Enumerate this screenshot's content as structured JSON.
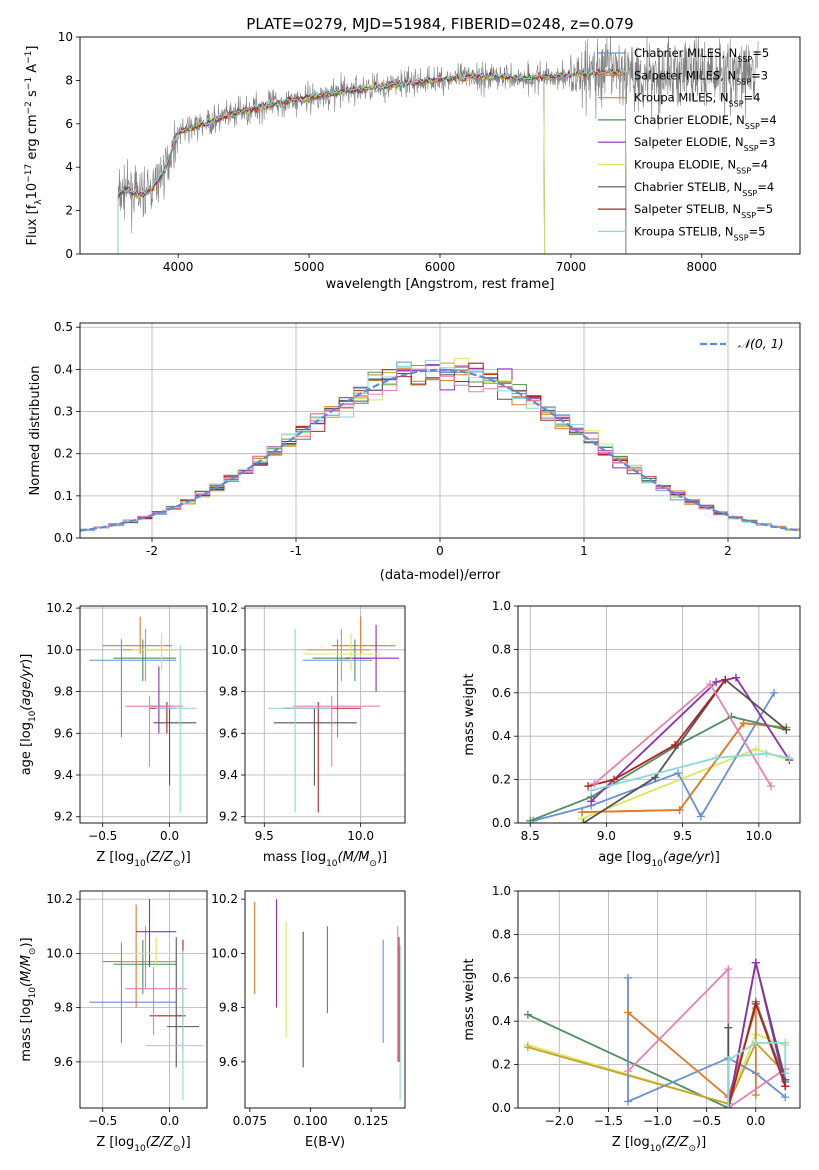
{
  "figure_title": "PLATE=0279, MJD=51984, FIBERID=0248, z=0.079",
  "colors": [
    "#6a8fd8",
    "#e07a2a",
    "#c8a030",
    "#4f8f5f",
    "#8e2fb0",
    "#d8e860",
    "#555555",
    "#b22222",
    "#8ad8d8"
  ],
  "chart_data": [
    {
      "name": "spectrum",
      "type": "line",
      "title": "PLATE=0279, MJD=51984, FIBERID=0248, z=0.079",
      "xlabel": "wavelength [Angstrom, rest frame]",
      "ylabel": "Flux [f_λ 10^-17 erg cm^-2 s^-1 A^-1]",
      "xlim": [
        3250,
        8750
      ],
      "ylim": [
        0,
        10
      ],
      "xticks": [
        4000,
        5000,
        6000,
        7000,
        8000
      ],
      "yticks": [
        0,
        2,
        4,
        6,
        8,
        10
      ],
      "grid": false,
      "legend_position": "right",
      "data_color": "#808080",
      "data_start": 3540,
      "data_end": 8430,
      "model_start": 3540,
      "model_end": 7420,
      "model_continuum": {
        "x": [
          3540,
          3600,
          3700,
          3800,
          3900,
          4000,
          4100,
          4300,
          4500,
          4800,
          5000,
          5200,
          5500,
          5800,
          6100,
          6400,
          6600,
          6900,
          7100,
          7300,
          7420
        ],
        "y": [
          2.6,
          3.0,
          2.7,
          3.0,
          3.9,
          5.6,
          5.8,
          6.2,
          6.6,
          7.0,
          7.2,
          7.4,
          7.7,
          7.9,
          8.1,
          8.2,
          8.1,
          8.2,
          8.3,
          8.4,
          8.3
        ]
      },
      "series": [
        {
          "name_base": "Chabrier MILES, N",
          "name_sub": "SSP",
          "name_rest": "=5",
          "color": "#6a8fd8",
          "end": 7420
        },
        {
          "name_base": "Salpeter MILES, N",
          "name_sub": "SSP",
          "name_rest": "=3",
          "color": "#e07a2a",
          "end": 7420
        },
        {
          "name_base": "Kroupa MILES, N",
          "name_sub": "SSP",
          "name_rest": "=4",
          "color": "#c8a030",
          "end": 7420
        },
        {
          "name_base": "Chabrier ELODIE, N",
          "name_sub": "SSP",
          "name_rest": "=4",
          "color": "#4f8f5f",
          "end": 6800
        },
        {
          "name_base": "Salpeter ELODIE, N",
          "name_sub": "SSP",
          "name_rest": "=3",
          "color": "#8e2fb0",
          "end": 6800
        },
        {
          "name_base": "Kroupa ELODIE, N",
          "name_sub": "SSP",
          "name_rest": "=4",
          "color": "#d8e860",
          "end": 6800
        },
        {
          "name_base": "Chabrier STELIB, N",
          "name_sub": "SSP",
          "name_rest": "=4",
          "color": "#555555",
          "end": 7420
        },
        {
          "name_base": "Salpeter STELIB, N",
          "name_sub": "SSP",
          "name_rest": "=5",
          "color": "#b22222",
          "end": 7420
        },
        {
          "name_base": "Kroupa STELIB, N",
          "name_sub": "SSP",
          "name_rest": "=5",
          "color": "#8ad8d8",
          "end": 7420
        }
      ]
    },
    {
      "name": "residuals",
      "type": "histogram",
      "xlabel": "(data-model)/error",
      "ylabel": "Normed distribution",
      "xlim": [
        -2.5,
        2.5
      ],
      "ylim": [
        0,
        0.51
      ],
      "xticks": [
        -2,
        -1,
        0,
        1,
        2
      ],
      "yticks": [
        0.0,
        0.1,
        0.2,
        0.3,
        0.4,
        0.5
      ],
      "grid": true,
      "bin_width": 0.1,
      "gaussian": {
        "label": "𝒩(0, 1)",
        "color": "#5a8cd8",
        "mu": 0,
        "sigma": 1
      },
      "legend_position": "top-right"
    },
    {
      "name": "age_vs_Z",
      "type": "errorbar",
      "xlabel": "Z [log10(Z/Z☉)]",
      "ylabel": "age [log10(age/yr)]",
      "xlim": [
        -0.67,
        0.28
      ],
      "ylim": [
        9.17,
        10.21
      ],
      "xticks": [
        -0.5,
        0.0
      ],
      "xticklabels": [
        "−0.5",
        "0.0"
      ],
      "yticks": [
        9.2,
        9.4,
        9.6,
        9.8,
        10.0,
        10.2
      ],
      "grid": true,
      "points": [
        {
          "color": "#6a8fd8",
          "x": -0.36,
          "y": 9.95,
          "xl": -0.6,
          "xh": 0.05,
          "yl": 9.58,
          "yh": 10.05
        },
        {
          "color": "#e07a2a",
          "x": -0.22,
          "y": 10.02,
          "xl": -0.5,
          "xh": 0.02,
          "yl": 9.98,
          "yh": 10.16
        },
        {
          "color": "#c8a030",
          "x": -0.18,
          "y": 10.0,
          "xl": -0.35,
          "xh": 0.05,
          "yl": 9.85,
          "yh": 10.1
        },
        {
          "color": "#4f8f5f",
          "x": -0.2,
          "y": 9.96,
          "xl": -0.42,
          "xh": 0.05,
          "yl": 9.85,
          "yh": 10.05
        },
        {
          "color": "#8e2fb0",
          "x": -0.08,
          "y": 9.73,
          "xl": -0.15,
          "xh": 0.02,
          "yl": 9.6,
          "yh": 9.92
        },
        {
          "color": "#d8e860",
          "x": -0.06,
          "y": 10.0,
          "xl": -0.28,
          "xh": 0.05,
          "yl": 9.9,
          "yh": 10.08
        },
        {
          "color": "#555555",
          "x": 0.0,
          "y": 9.65,
          "xl": -0.12,
          "xh": 0.2,
          "yl": 9.35,
          "yh": 9.72
        },
        {
          "color": "#b22222",
          "x": -0.02,
          "y": 9.72,
          "xl": -0.15,
          "xh": 0.05,
          "yl": 9.6,
          "yh": 9.75
        },
        {
          "color": "#e87fb0",
          "x": -0.15,
          "y": 9.73,
          "xl": -0.33,
          "xh": 0.1,
          "yl": 9.44,
          "yh": 9.78
        },
        {
          "color": "#8ad8d8",
          "x": 0.08,
          "y": 9.72,
          "xl": -0.1,
          "xh": 0.2,
          "yl": 9.22,
          "yh": 10.02
        }
      ]
    },
    {
      "name": "age_vs_mass",
      "type": "errorbar",
      "xlabel": "mass [log10(M/M☉)]",
      "ylabel": "",
      "xlim": [
        9.4,
        10.23
      ],
      "ylim": [
        9.17,
        10.21
      ],
      "xticks": [
        9.5,
        10.0
      ],
      "xticklabels": [
        "9.5",
        "10.0"
      ],
      "yticks": [
        9.2,
        9.4,
        9.6,
        9.8,
        10.0,
        10.2
      ],
      "grid": true,
      "points": [
        {
          "color": "#6a8fd8",
          "x": 9.88,
          "y": 9.95,
          "xl": 9.7,
          "xh": 10.06,
          "yl": 9.58,
          "yh": 10.05
        },
        {
          "color": "#e07a2a",
          "x": 10.0,
          "y": 10.02,
          "xl": 9.85,
          "xh": 10.18,
          "yl": 9.98,
          "yh": 10.16
        },
        {
          "color": "#c8a030",
          "x": 9.9,
          "y": 10.0,
          "xl": 9.72,
          "xh": 10.05,
          "yl": 9.85,
          "yh": 10.1
        },
        {
          "color": "#4f8f5f",
          "x": 9.97,
          "y": 9.96,
          "xl": 9.75,
          "xh": 10.05,
          "yl": 9.85,
          "yh": 10.05
        },
        {
          "color": "#8e2fb0",
          "x": 10.08,
          "y": 9.96,
          "xl": 9.92,
          "xh": 10.2,
          "yl": 9.8,
          "yh": 10.12
        },
        {
          "color": "#d8e860",
          "x": 9.95,
          "y": 9.98,
          "xl": 9.7,
          "xh": 10.1,
          "yl": 9.9,
          "yh": 10.08
        },
        {
          "color": "#555555",
          "x": 9.76,
          "y": 9.65,
          "xl": 9.55,
          "xh": 9.98,
          "yl": 9.35,
          "yh": 9.72
        },
        {
          "color": "#b22222",
          "x": 9.78,
          "y": 9.72,
          "xl": 9.6,
          "xh": 10.0,
          "yl": 9.22,
          "yh": 9.75
        },
        {
          "color": "#e87fb0",
          "x": 9.85,
          "y": 9.73,
          "xl": 9.65,
          "xh": 10.1,
          "yl": 9.44,
          "yh": 9.78
        },
        {
          "color": "#8ad8d8",
          "x": 9.66,
          "y": 9.72,
          "xl": 9.52,
          "xh": 9.85,
          "yl": 9.22,
          "yh": 10.1
        }
      ]
    },
    {
      "name": "weight_vs_age",
      "type": "line",
      "xlabel": "age [log10(age/yr)]",
      "ylabel": "mass weight",
      "xlim": [
        8.42,
        10.27
      ],
      "ylim": [
        0,
        1.0
      ],
      "xticks": [
        8.5,
        9.0,
        9.5,
        10.0
      ],
      "xticklabels": [
        "8.5",
        "9.0",
        "9.5",
        "10.0"
      ],
      "yticks": [
        0.0,
        0.2,
        0.4,
        0.6,
        0.8,
        1.0
      ],
      "grid": true,
      "series": [
        {
          "color": "#d8e860",
          "x": [
            8.84,
            9.98,
            10.2
          ],
          "y": [
            0.02,
            0.34,
            0.29
          ]
        },
        {
          "color": "#c8a030",
          "x": [
            8.84,
            9.48,
            9.9,
            10.18
          ],
          "y": [
            0.05,
            0.06,
            0.46,
            0.44
          ]
        },
        {
          "color": "#e07a2a",
          "x": [
            8.84,
            9.48,
            9.9,
            10.18
          ],
          "y": [
            0.05,
            0.06,
            0.46,
            0.44
          ]
        },
        {
          "color": "#6a8fd8",
          "x": [
            8.52,
            8.9,
            9.47,
            9.62,
            10.1
          ],
          "y": [
            0.01,
            0.08,
            0.23,
            0.03,
            0.6
          ]
        },
        {
          "color": "#4f8f5f",
          "x": [
            8.5,
            8.9,
            9.47,
            9.82,
            10.18
          ],
          "y": [
            0.01,
            0.12,
            0.36,
            0.49,
            0.43
          ]
        },
        {
          "color": "#8e2fb0",
          "x": [
            8.9,
            9.72,
            9.85,
            10.2
          ],
          "y": [
            0.1,
            0.65,
            0.67,
            0.29
          ]
        },
        {
          "color": "#555555",
          "x": [
            8.85,
            9.32,
            9.78,
            10.18
          ],
          "y": [
            0.0,
            0.21,
            0.66,
            0.43
          ]
        },
        {
          "color": "#b22222",
          "x": [
            8.88,
            9.05,
            9.45,
            9.78
          ],
          "y": [
            0.17,
            0.2,
            0.36,
            0.66
          ]
        },
        {
          "color": "#e87fb0",
          "x": [
            8.92,
            9.68,
            10.08
          ],
          "y": [
            0.18,
            0.64,
            0.17
          ]
        },
        {
          "color": "#8ad8d8",
          "x": [
            8.9,
            9.72,
            10.05,
            10.2
          ],
          "y": [
            0.15,
            0.3,
            0.32,
            0.3
          ]
        }
      ]
    },
    {
      "name": "mass_vs_Z",
      "type": "errorbar",
      "xlabel": "Z [log10(Z/Z☉)]",
      "ylabel": "mass [log10(M/M☉)]",
      "xlim": [
        -0.67,
        0.28
      ],
      "ylim": [
        9.43,
        10.23
      ],
      "xticks": [
        -0.5,
        0.0
      ],
      "xticklabels": [
        "−0.5",
        "0.0"
      ],
      "yticks": [
        9.6,
        9.8,
        10.0,
        10.2
      ],
      "grid": true,
      "points": [
        {
          "color": "#6a8fd8",
          "x": -0.36,
          "y": 9.82,
          "xl": -0.6,
          "xh": 0.05,
          "yl": 9.67,
          "yh": 10.04
        },
        {
          "color": "#e07a2a",
          "x": -0.25,
          "y": 9.97,
          "xl": -0.5,
          "xh": 0.02,
          "yl": 9.8,
          "yh": 10.18
        },
        {
          "color": "#c8a030",
          "x": -0.18,
          "y": 9.97,
          "xl": -0.35,
          "xh": 0.05,
          "yl": 9.87,
          "yh": 10.1
        },
        {
          "color": "#4f8f5f",
          "x": -0.2,
          "y": 9.96,
          "xl": -0.42,
          "xh": 0.05,
          "yl": 9.85,
          "yh": 10.05
        },
        {
          "color": "#8e2fb0",
          "x": -0.15,
          "y": 10.08,
          "xl": -0.25,
          "xh": 0.05,
          "yl": 9.95,
          "yh": 10.2
        },
        {
          "color": "#d8e860",
          "x": -0.1,
          "y": 10.0,
          "xl": -0.35,
          "xh": 0.05,
          "yl": 9.95,
          "yh": 10.06
        },
        {
          "color": "#555555",
          "x": 0.05,
          "y": 9.73,
          "xl": -0.02,
          "xh": 0.22,
          "yl": 9.58,
          "yh": 10.06
        },
        {
          "color": "#b22222",
          "x": 0.1,
          "y": 9.77,
          "xl": -0.15,
          "xh": 0.12,
          "yl": 9.64,
          "yh": 10.05
        },
        {
          "color": "#e87fb0",
          "x": -0.12,
          "y": 9.87,
          "xl": -0.33,
          "xh": 0.13,
          "yl": 9.7,
          "yh": 9.95
        },
        {
          "color": "#8ad8d8",
          "x": 0.1,
          "y": 9.66,
          "xl": -0.18,
          "xh": 0.25,
          "yl": 9.46,
          "yh": 10.01
        }
      ]
    },
    {
      "name": "mass_vs_EBV",
      "type": "errorbar",
      "xlabel": "E(B-V)",
      "ylabel": "",
      "xlim": [
        0.073,
        0.139
      ],
      "ylim": [
        9.43,
        10.23
      ],
      "xticks": [
        0.075,
        0.1,
        0.125
      ],
      "xticklabels": [
        "0.075",
        "0.100",
        "0.125"
      ],
      "yticks": [
        9.6,
        9.8,
        10.0,
        10.2
      ],
      "grid": false,
      "points": [
        {
          "color": "#e07a2a",
          "x": 0.077,
          "y": 10.02,
          "yl": 9.85,
          "yh": 10.19
        },
        {
          "color": "#8e2fb0",
          "x": 0.086,
          "y": 10.0,
          "yl": 9.8,
          "yh": 10.2
        },
        {
          "color": "#d8e860",
          "x": 0.09,
          "y": 9.9,
          "yl": 9.69,
          "yh": 10.12
        },
        {
          "color": "#555555",
          "x": 0.097,
          "y": 9.85,
          "yl": 9.58,
          "yh": 10.08
        },
        {
          "color": "#4f8f5f",
          "x": 0.107,
          "y": 9.95,
          "yl": 9.78,
          "yh": 10.1
        },
        {
          "color": "#6a8fd8",
          "x": 0.13,
          "y": 9.85,
          "yl": 9.67,
          "yh": 10.05
        },
        {
          "color": "#b22222",
          "x": 0.1365,
          "y": 9.8,
          "yl": 9.6,
          "yh": 10.06
        },
        {
          "color": "#8ad8d8",
          "x": 0.137,
          "y": 9.78,
          "yl": 9.46,
          "yh": 10.03
        },
        {
          "color": "#e87fb0",
          "x": 0.136,
          "y": 9.85,
          "yl": 9.6,
          "yh": 10.1
        }
      ]
    },
    {
      "name": "weight_vs_Z",
      "type": "line",
      "xlabel": "Z [log10(Z/Z☉)]",
      "ylabel": "mass weight",
      "xlim": [
        -2.42,
        0.45
      ],
      "ylim": [
        0,
        1.0
      ],
      "xticks": [
        -2.0,
        -1.5,
        -1.0,
        -0.5,
        0.0
      ],
      "xticklabels": [
        "−2.0",
        "−1.5",
        "−1.0",
        "−0.5",
        "0.0"
      ],
      "yticks": [
        0.0,
        0.2,
        0.4,
        0.6,
        0.8,
        1.0
      ],
      "grid": true,
      "series": [
        {
          "color": "#4f8f5f",
          "x": [
            -2.32,
            -0.28,
            0.0,
            0.3
          ],
          "y": [
            0.43,
            0.0,
            0.49,
            0.12
          ]
        },
        {
          "color": "#d8e860",
          "x": [
            -2.32,
            -0.28,
            0.0,
            0.3
          ],
          "y": [
            0.29,
            0.02,
            0.34,
            0.29
          ]
        },
        {
          "color": "#c8a030",
          "x": [
            -2.32,
            -0.28,
            0.0,
            0.3
          ],
          "y": [
            0.28,
            0.02,
            0.3,
            0.16
          ]
        },
        {
          "color": "#6a8fd8",
          "x": [
            -1.3,
            -1.3,
            -0.28,
            0.0,
            0.3
          ],
          "y": [
            0.6,
            0.03,
            0.23,
            0.16,
            0.05
          ]
        },
        {
          "color": "#e07a2a",
          "x": [
            -1.3,
            -0.28,
            0.0,
            0.0
          ],
          "y": [
            0.44,
            0.05,
            0.46,
            0.06
          ]
        },
        {
          "color": "#e87fb0",
          "x": [
            -1.3,
            -0.28,
            -0.28,
            0.3
          ],
          "y": [
            0.17,
            0.64,
            0.0,
            0.18
          ]
        },
        {
          "color": "#555555",
          "x": [
            -0.28,
            -0.28,
            0.0,
            0.3
          ],
          "y": [
            0.37,
            0.0,
            0.67,
            0.13
          ]
        },
        {
          "color": "#8e2fb0",
          "x": [
            -0.28,
            0.0,
            0.3
          ],
          "y": [
            0.0,
            0.67,
            0.1
          ]
        },
        {
          "color": "#b22222",
          "x": [
            -0.28,
            0.0,
            0.3
          ],
          "y": [
            0.0,
            0.48,
            0.1
          ]
        },
        {
          "color": "#8ad8d8",
          "x": [
            -0.28,
            -0.28,
            0.0,
            0.3,
            0.3
          ],
          "y": [
            0.0,
            0.22,
            0.3,
            0.3,
            0.16
          ]
        }
      ]
    }
  ]
}
